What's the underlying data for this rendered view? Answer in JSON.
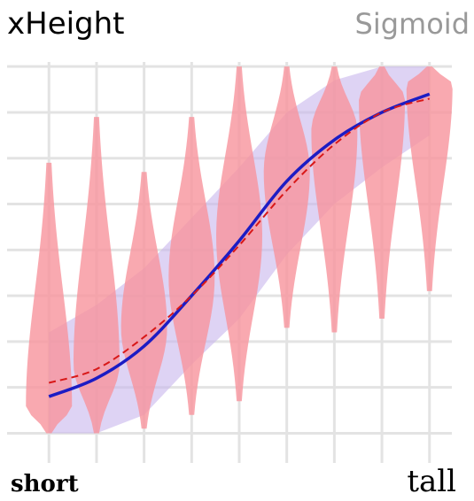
{
  "chart_data": {
    "type": "violin",
    "title": "xHeight",
    "subtitle": "Sigmoid",
    "x_start_label": "short",
    "x_end_label": "tall",
    "x": [
      0,
      1,
      2,
      3,
      4,
      5,
      6,
      7,
      8
    ],
    "xlim": [
      -0.88,
      8.47
    ],
    "xticks": [
      0,
      1,
      2,
      3,
      4,
      5,
      6,
      7,
      8
    ],
    "ylim": [
      -0.3,
      8.1
    ],
    "yticks": [
      0,
      1,
      2,
      3,
      4,
      5,
      6,
      7,
      8
    ],
    "grid": true,
    "mins": [
      0,
      0,
      0.1,
      0.4,
      0.7,
      2.3,
      2.2,
      2.5,
      3.1
    ],
    "medians": [
      0.6,
      1.5,
      2.3,
      3.4,
      4.3,
      5.7,
      6.6,
      7.3,
      7.6
    ],
    "maxs": [
      5.9,
      6.9,
      5.7,
      6.9,
      8,
      8,
      8,
      8,
      8
    ],
    "fit": [
      0.8,
      1.2,
      1.9,
      3.0,
      4.2,
      5.5,
      6.4,
      7.0,
      7.4
    ],
    "dashed_fit": [
      1.1,
      1.4,
      2.1,
      3.0,
      4.1,
      5.3,
      6.3,
      7.0,
      7.3
    ],
    "band_low": [
      0,
      0,
      0.4,
      1.5,
      2.5,
      3.9,
      5.0,
      5.8,
      6.5
    ],
    "band_high": [
      2.2,
      2.8,
      3.6,
      4.7,
      5.8,
      7.0,
      7.7,
      8,
      8
    ],
    "violin_color": "#f7939c",
    "band_color": "#c8b6ec",
    "fit_color": "#1c1cc4",
    "dashed_color": "#d81818"
  }
}
